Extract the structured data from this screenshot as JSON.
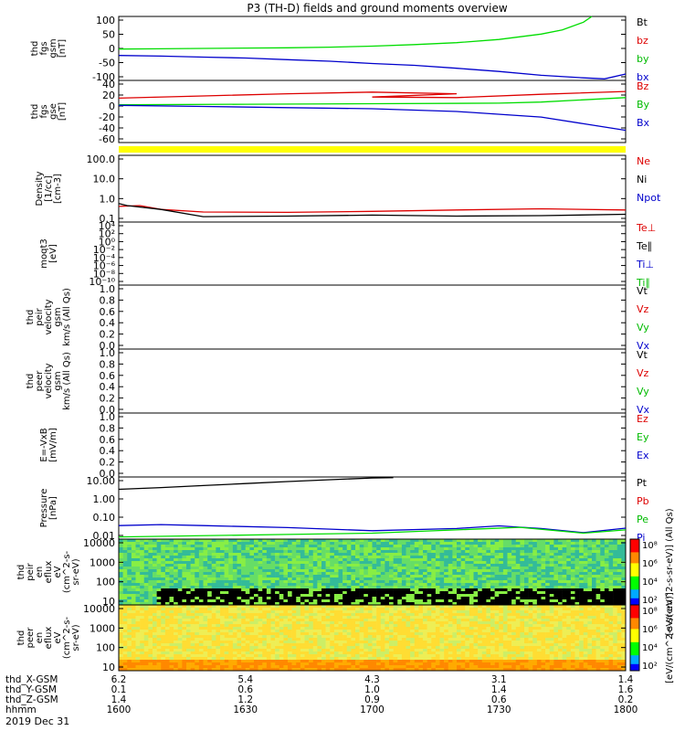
{
  "chart_data": {
    "type": "line",
    "title": "P3 (TH-D) fields and ground moments overview",
    "panels": [
      {
        "id": "fgs-gsm",
        "ylabel": [
          "thd",
          "fgs",
          "gsm",
          "[nT]"
        ],
        "yticks": [
          "100",
          "50",
          "0",
          "-50",
          "-100"
        ],
        "ylim": [
          -100,
          100
        ],
        "legend": [
          {
            "label": "Bt",
            "color": "#000000"
          },
          {
            "label": "bz",
            "color": "#dd0000"
          },
          {
            "label": "by",
            "color": "#00bb00"
          },
          {
            "label": "bx",
            "color": "#0000cc"
          }
        ],
        "series": [
          {
            "color": "#00dd00",
            "x": [
              1600,
              1610,
              1620,
              1630,
              1640,
              1650,
              1700,
              1710,
              1720,
              1730,
              1740,
              1745,
              1750,
              1752
            ],
            "y": [
              -2,
              -1,
              0,
              1,
              2,
              4,
              7,
              12,
              18,
              28,
              45,
              58,
              82,
              100
            ]
          },
          {
            "color": "#0000cc",
            "x": [
              1600,
              1610,
              1620,
              1630,
              1640,
              1650,
              1700,
              1710,
              1720,
              1730,
              1740,
              1750,
              1755,
              1800
            ],
            "y": [
              -22,
              -24,
              -27,
              -30,
              -35,
              -40,
              -47,
              -53,
              -62,
              -72,
              -84,
              -92,
              -95,
              -80
            ]
          }
        ]
      },
      {
        "id": "fgs-gse",
        "ylabel": [
          "thd",
          "fgs",
          "gse",
          "[nT]"
        ],
        "yticks": [
          "40",
          "20",
          "0",
          "-20",
          "-40",
          "-60"
        ],
        "ylim": [
          -70,
          42
        ],
        "legend": [
          {
            "label": "Bz",
            "color": "#dd0000"
          },
          {
            "label": "By",
            "color": "#00bb00"
          },
          {
            "label": "Bx",
            "color": "#0000cc"
          }
        ],
        "series": [
          {
            "color": "#dd0000",
            "x": [
              1600,
              1620,
              1640,
              1660,
              1680,
              1700,
              1720,
              1740,
              1800
            ],
            "y": [
              10,
              14,
              18,
              21,
              18,
              12,
              11,
              17,
              22
            ]
          },
          {
            "color": "#00dd00",
            "x": [
              1600,
              1630,
              1700,
              1730,
              1740,
              1800
            ],
            "y": [
              -2,
              -1,
              0,
              1,
              3,
              11
            ]
          },
          {
            "color": "#0000cc",
            "x": [
              1600,
              1620,
              1640,
              1700,
              1720,
              1740,
              1750,
              1755,
              1800
            ],
            "y": [
              -3,
              -5,
              -7,
              -9,
              -14,
              -24,
              -36,
              -42,
              -48
            ]
          }
        ]
      },
      {
        "id": "density",
        "ylabel": [
          "Density",
          "[1/cc]",
          "[cm-3]"
        ],
        "yticks": [
          "100.0",
          "10.0",
          "1.0",
          "0.1"
        ],
        "scale": "log",
        "ylim": [
          0.08,
          200
        ],
        "legend": [
          {
            "label": "Ne",
            "color": "#dd0000"
          },
          {
            "label": "Ni",
            "color": "#000000"
          },
          {
            "label": "Npot",
            "color": "#0000cc"
          }
        ],
        "series": [
          {
            "color": "#dd0000",
            "x": [
              1600,
              1605,
              1610,
              1620,
              1640,
              1700,
              1720,
              1740,
              1800
            ],
            "y": [
              0.5,
              0.55,
              0.35,
              0.26,
              0.25,
              0.28,
              0.33,
              0.38,
              0.33
            ]
          },
          {
            "color": "#000000",
            "x": [
              1600,
              1602,
              1610,
              1620,
              1640,
              1700,
              1720,
              1740,
              1800
            ],
            "y": [
              0.7,
              0.55,
              0.35,
              0.15,
              0.16,
              0.18,
              0.16,
              0.17,
              0.2
            ]
          }
        ]
      },
      {
        "id": "moqt3",
        "ylabel": [
          "moqt3",
          "[eV]"
        ],
        "yticks": [
          "10⁴",
          "10²",
          "10⁰",
          "10⁻²",
          "10⁻⁴",
          "10⁻⁶",
          "10⁻⁸",
          "10⁻¹⁰"
        ],
        "legend": [
          {
            "label": "Te⊥",
            "color": "#dd0000"
          },
          {
            "label": "Te∥",
            "color": "#000000"
          },
          {
            "label": "Ti⊥",
            "color": "#0000cc"
          },
          {
            "label": "Ti∥",
            "color": "#00bb00"
          }
        ]
      },
      {
        "id": "peir-velocity",
        "ylabel": [
          "thd",
          "peir",
          "velocity",
          "gsm",
          "km/s (All Qs)"
        ],
        "yticks": [
          "1.0",
          "0.8",
          "0.6",
          "0.4",
          "0.2",
          "0.0"
        ],
        "legend": [
          {
            "label": "Vt",
            "color": "#000000"
          },
          {
            "label": "Vz",
            "color": "#dd0000"
          },
          {
            "label": "Vy",
            "color": "#00bb00"
          },
          {
            "label": "Vx",
            "color": "#0000cc"
          }
        ]
      },
      {
        "id": "peer-velocity",
        "ylabel": [
          "thd",
          "peer",
          "velocity",
          "gsm",
          "km/s (All Qs)"
        ],
        "yticks": [
          "1.0",
          "0.8",
          "0.6",
          "0.4",
          "0.2",
          "0.0"
        ],
        "legend": [
          {
            "label": "Vt",
            "color": "#000000"
          },
          {
            "label": "Vz",
            "color": "#dd0000"
          },
          {
            "label": "Vy",
            "color": "#00bb00"
          },
          {
            "label": "Vx",
            "color": "#0000cc"
          }
        ]
      },
      {
        "id": "exb",
        "ylabel": [
          "E=-VxB",
          "[mV/m]"
        ],
        "yticks": [
          "1.0",
          "0.8",
          "0.6",
          "0.4",
          "0.2",
          "0.0"
        ],
        "legend": [
          {
            "label": "Ez",
            "color": "#dd0000"
          },
          {
            "label": "Ey",
            "color": "#00bb00"
          },
          {
            "label": "Ex",
            "color": "#0000cc"
          }
        ]
      },
      {
        "id": "pressure",
        "ylabel": [
          "Pressure",
          "[nPa]"
        ],
        "yticks": [
          "10.00",
          "1.00",
          "0.10",
          "0.01"
        ],
        "scale": "log",
        "ylim": [
          0.006,
          20
        ],
        "legend": [
          {
            "label": "Pt",
            "color": "#000000"
          },
          {
            "label": "Pb",
            "color": "#dd0000"
          },
          {
            "label": "Pe",
            "color": "#00bb00"
          },
          {
            "label": "Pi",
            "color": "#0000cc"
          }
        ],
        "series": [
          {
            "color": "#000000",
            "x": [
              1600,
              1610,
              1620,
              1630,
              1640,
              1650,
              1700,
              1705
            ],
            "y": [
              4,
              5,
              6.5,
              8.5,
              11,
              14,
              17.5,
              18.5
            ]
          },
          {
            "color": "#0000cc",
            "x": [
              1600,
              1610,
              1620,
              1640,
              1700,
              1720,
              1730,
              1740,
              1750,
              1800
            ],
            "y": [
              0.035,
              0.04,
              0.035,
              0.027,
              0.018,
              0.024,
              0.034,
              0.024,
              0.014,
              0.025
            ]
          },
          {
            "color": "#00dd00",
            "x": [
              1600,
              1640,
              1700,
              1720,
              1735,
              1750,
              1800
            ],
            "y": [
              0.008,
              0.011,
              0.013,
              0.02,
              0.028,
              0.013,
              0.02
            ]
          }
        ]
      },
      {
        "id": "peir-spec",
        "ylabel": [
          "thd",
          "peir",
          "en",
          "eflux",
          "eV",
          "(cm^2-s-",
          "sr-eV)"
        ],
        "yticks": [
          "10000",
          "1000",
          "100",
          "10"
        ],
        "colorbar_ticks": [
          "10⁸",
          "10⁶",
          "10⁴",
          "10²"
        ],
        "colorbar_label": "[eV/(cm^2-s-sr-eV)] (All Qs)"
      },
      {
        "id": "peer-spec",
        "ylabel": [
          "thd",
          "peer",
          "en",
          "eflux",
          "eV",
          "(cm^2-s-",
          "sr-eV)"
        ],
        "yticks": [
          "10000",
          "1000",
          "100",
          "10"
        ],
        "colorbar_ticks": [
          "10⁸",
          "10⁶",
          "10⁴",
          "10²"
        ],
        "colorbar_label": "[eV/(cm^2-s-sr-eV)]"
      }
    ],
    "xaxis": {
      "rows": [
        {
          "label": "thd_X-GSM",
          "values": [
            "6.2",
            "5.4",
            "4.3",
            "3.1",
            "1.4"
          ]
        },
        {
          "label": "thd_Y-GSM",
          "values": [
            "0.1",
            "0.6",
            "1.0",
            "1.4",
            "1.6"
          ]
        },
        {
          "label": "thd_Z-GSM",
          "values": [
            "1.4",
            "1.2",
            "0.9",
            "0.6",
            "0.2"
          ]
        },
        {
          "label": "hhmm",
          "values": [
            "1600",
            "1630",
            "1700",
            "1730",
            "1800"
          ]
        }
      ],
      "date": "2019 Dec 31"
    }
  }
}
